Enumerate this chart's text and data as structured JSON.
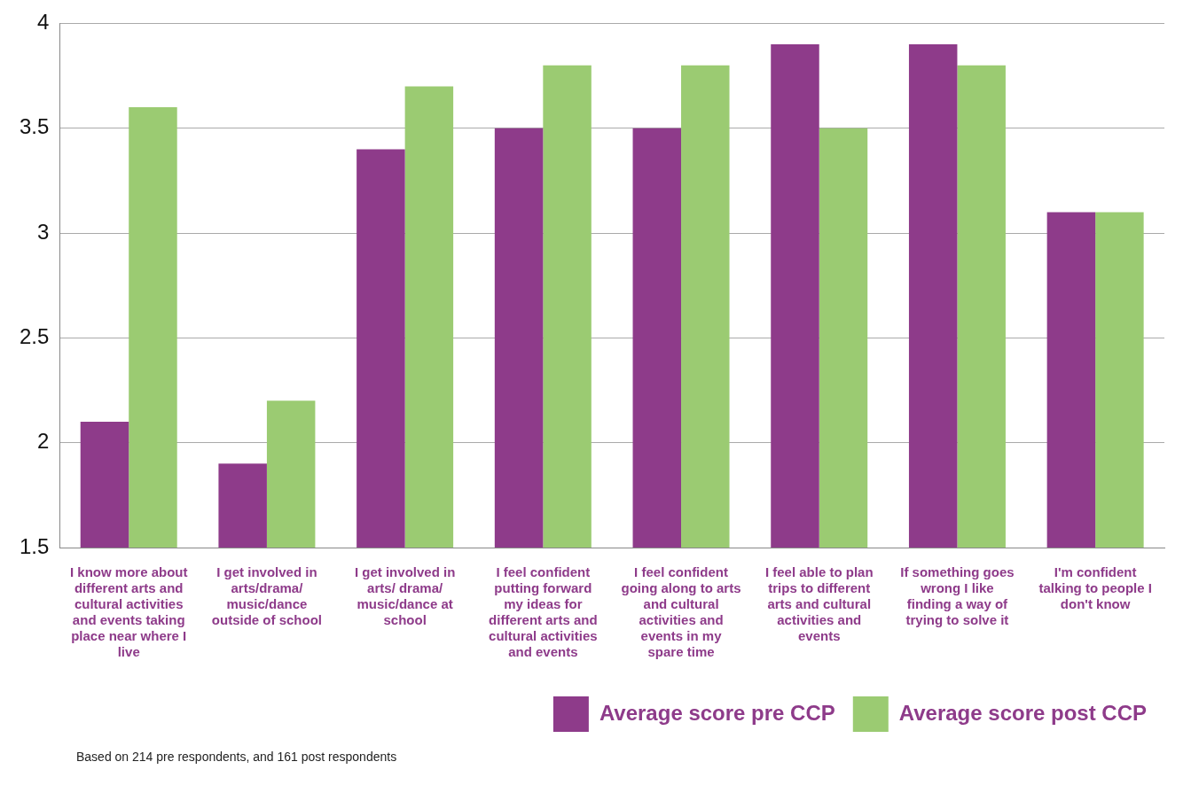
{
  "chart_data": {
    "type": "bar",
    "categories": [
      "I know more about different arts and cultural activities and events taking place near where I live",
      "I get involved in arts/drama/ music/dance outside of school",
      "I get involved in arts/ drama/ music/dance at school",
      "I feel confident putting forward my ideas for different arts and cultural activities and events",
      "I feel confident going along to arts and cultural activities and events in my spare time",
      "I feel able to plan trips to different arts and cultural activities and events",
      "If something goes wrong I like finding a way of trying to solve it",
      "I'm confident talking to people I don't know"
    ],
    "series": [
      {
        "name": "Average score pre CCP",
        "color": "#8e3b8a",
        "values": [
          2.1,
          1.9,
          3.4,
          3.5,
          3.5,
          3.9,
          3.9,
          3.1
        ]
      },
      {
        "name": "Average score post CCP",
        "color": "#9bcb72",
        "values": [
          3.6,
          2.2,
          3.7,
          3.8,
          3.8,
          3.5,
          3.8,
          3.1
        ]
      }
    ],
    "ylim": [
      1.5,
      4
    ],
    "yticks": [
      1.5,
      2,
      2.5,
      3,
      3.5,
      4
    ],
    "grid": "y",
    "legend": "bottom right",
    "annotations": [
      "Based on 214 pre respondents, and 161 post respondents"
    ]
  }
}
